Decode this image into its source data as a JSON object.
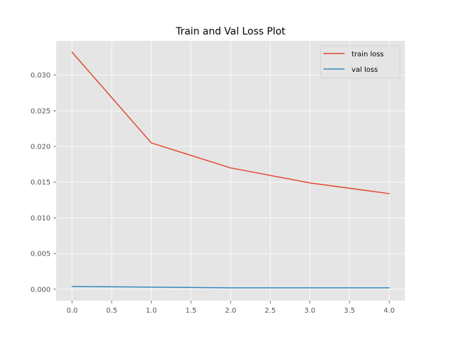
{
  "chart_data": {
    "type": "line",
    "title": "Train and Val Loss Plot",
    "xlabel": "",
    "ylabel": "",
    "x": [
      0,
      1,
      2,
      3,
      4
    ],
    "xlim": [
      -0.2,
      4.2
    ],
    "ylim": [
      -0.0016,
      0.0348
    ],
    "x_ticks": [
      0.0,
      0.5,
      1.0,
      1.5,
      2.0,
      2.5,
      3.0,
      3.5,
      4.0
    ],
    "x_tick_labels": [
      "0.0",
      "0.5",
      "1.0",
      "1.5",
      "2.0",
      "2.5",
      "3.0",
      "3.5",
      "4.0"
    ],
    "y_ticks": [
      0.0,
      0.005,
      0.01,
      0.015,
      0.02,
      0.025,
      0.03
    ],
    "y_tick_labels": [
      "0.000",
      "0.005",
      "0.010",
      "0.015",
      "0.020",
      "0.025",
      "0.030"
    ],
    "grid": true,
    "legend_position": "top-right",
    "style": {
      "background": "#e5e5e5",
      "grid": "#ffffff"
    },
    "series": [
      {
        "name": "train loss",
        "color": "#e24a33",
        "values": [
          0.0332,
          0.0205,
          0.017,
          0.0149,
          0.0134
        ]
      },
      {
        "name": "val loss",
        "color": "#348abd",
        "values": [
          0.0004,
          0.0003,
          0.0002,
          0.0002,
          0.0002
        ]
      }
    ]
  }
}
